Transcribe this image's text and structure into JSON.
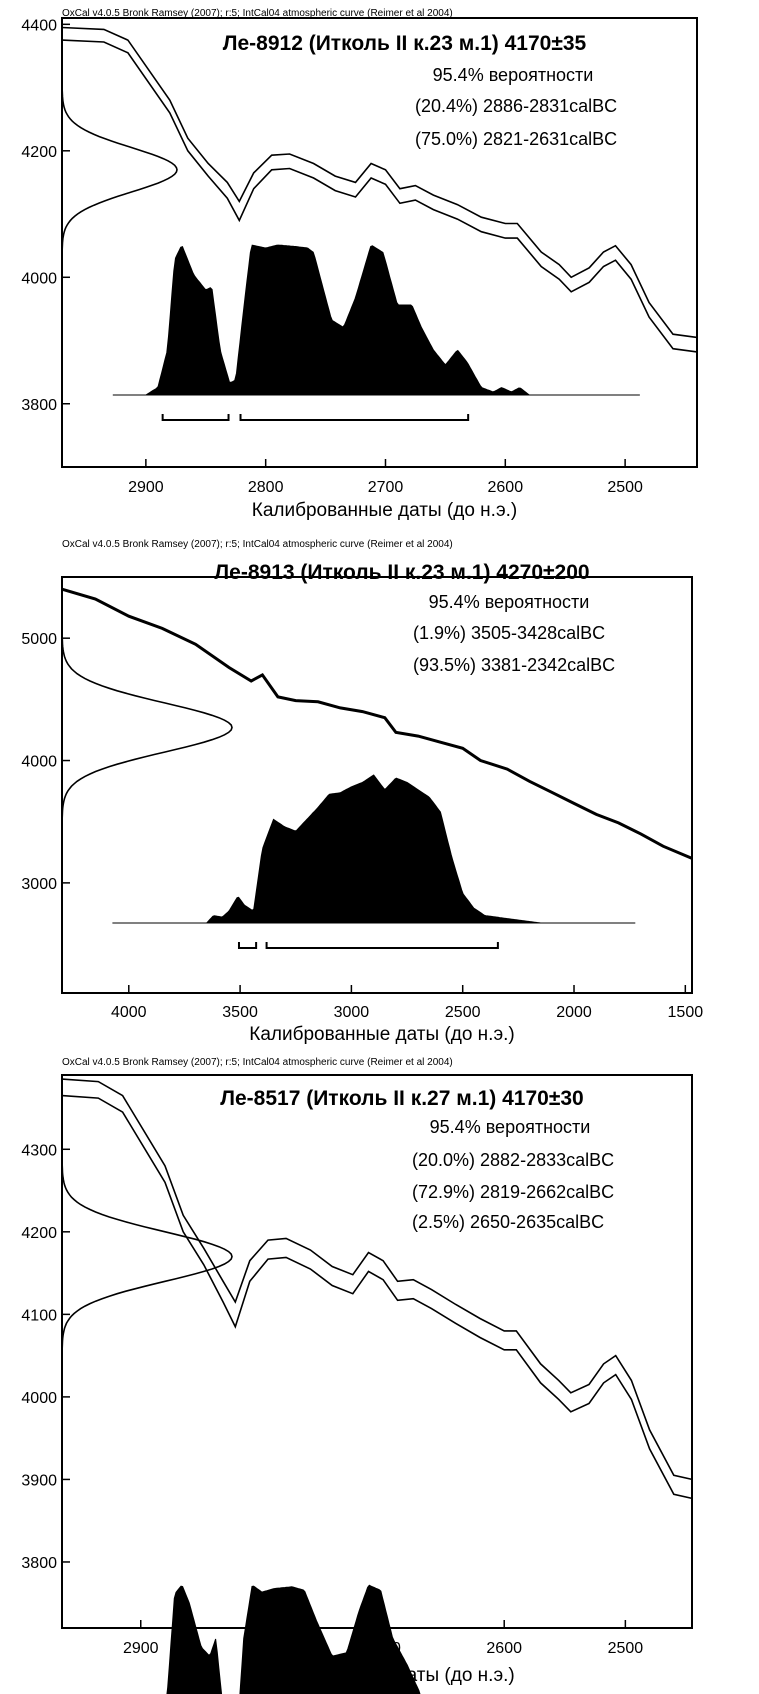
{
  "charts": [
    {
      "header": "OxCal v4.0.5 Bronk Ramsey (2007); r:5; IntCal04 atmospheric curve (Reimer et al 2004)",
      "title": "Ле-8912 (Итколь II к.23 м.1) 4170±35",
      "prob_title": "95.4% вероятности",
      "ranges": [
        "(20.4%) 2886-2831calBC",
        "(75.0%) 2821-2631calBC"
      ],
      "xlabel": "Калиброванные даты (до н.э.)",
      "x_ticks": [
        "2900",
        "2800",
        "2700",
        "2600",
        "2500"
      ],
      "y_ticks": [
        "4400",
        "4200",
        "4000",
        "3800"
      ]
    },
    {
      "header": "OxCal v4.0.5 Bronk Ramsey (2007); r:5; IntCal04 atmospheric curve (Reimer et al 2004)",
      "title": "Ле-8913 (Итколь II к.23 м.1) 4270±200",
      "prob_title": "95.4% вероятности",
      "ranges": [
        "(1.9%) 3505-3428calBC",
        "(93.5%) 3381-2342calBC"
      ],
      "xlabel": "Калиброванные даты (до н.э.)",
      "x_ticks": [
        "4000",
        "3500",
        "3000",
        "2500",
        "2000",
        "1500"
      ],
      "y_ticks": [
        "5000",
        "4000",
        "3000"
      ]
    },
    {
      "header": "OxCal v4.0.5 Bronk Ramsey (2007); r:5; IntCal04 atmospheric curve (Reimer et al 2004)",
      "title": "Ле-8517 (Итколь II к.27 м.1) 4170±30",
      "prob_title": "95.4% вероятности",
      "ranges": [
        "(20.0%) 2882-2833calBC",
        "(72.9%) 2819-2662calBC",
        "(2.5%) 2650-2635calBC"
      ],
      "xlabel": "Калиброванные даты (до н.э.)",
      "x_ticks": [
        "2900",
        "2800",
        "2700",
        "2600",
        "2500"
      ],
      "y_ticks": [
        "4300",
        "4200",
        "4100",
        "4000",
        "3900",
        "3800"
      ]
    }
  ],
  "chart_data": [
    {
      "type": "area",
      "title": "Ле-8912 (Итколь II к.23 м.1) 4170±35",
      "xlabel": "Калиброванные даты (до н.э.)",
      "ylabel": "",
      "x_reversed": true,
      "xlim": [
        2970,
        2440
      ],
      "ylim": [
        3700,
        4410
      ],
      "measurement": {
        "mean": 4170,
        "sigma": 35
      },
      "calibration_curve_upper": [
        [
          2970,
          4395
        ],
        [
          2935,
          4392
        ],
        [
          2915,
          4375
        ],
        [
          2880,
          4280
        ],
        [
          2865,
          4220
        ],
        [
          2848,
          4180
        ],
        [
          2832,
          4150
        ],
        [
          2822,
          4120
        ],
        [
          2810,
          4165
        ],
        [
          2795,
          4193
        ],
        [
          2780,
          4195
        ],
        [
          2760,
          4180
        ],
        [
          2742,
          4160
        ],
        [
          2725,
          4150
        ],
        [
          2712,
          4180
        ],
        [
          2700,
          4170
        ],
        [
          2688,
          4140
        ],
        [
          2675,
          4145
        ],
        [
          2660,
          4130
        ],
        [
          2640,
          4115
        ],
        [
          2620,
          4095
        ],
        [
          2600,
          4085
        ],
        [
          2590,
          4085
        ],
        [
          2570,
          4040
        ],
        [
          2555,
          4020
        ],
        [
          2545,
          4000
        ],
        [
          2530,
          4015
        ],
        [
          2518,
          4040
        ],
        [
          2508,
          4050
        ],
        [
          2495,
          4020
        ],
        [
          2480,
          3960
        ],
        [
          2460,
          3910
        ],
        [
          2440,
          3905
        ]
      ],
      "calibration_curve_lower": [
        [
          2970,
          4375
        ],
        [
          2935,
          4372
        ],
        [
          2915,
          4355
        ],
        [
          2880,
          4260
        ],
        [
          2865,
          4200
        ],
        [
          2848,
          4160
        ],
        [
          2832,
          4125
        ],
        [
          2822,
          4090
        ],
        [
          2810,
          4140
        ],
        [
          2795,
          4170
        ],
        [
          2780,
          4172
        ],
        [
          2760,
          4157
        ],
        [
          2742,
          4137
        ],
        [
          2725,
          4127
        ],
        [
          2712,
          4157
        ],
        [
          2700,
          4147
        ],
        [
          2688,
          4117
        ],
        [
          2675,
          4122
        ],
        [
          2660,
          4107
        ],
        [
          2640,
          4092
        ],
        [
          2620,
          4072
        ],
        [
          2600,
          4062
        ],
        [
          2590,
          4062
        ],
        [
          2570,
          4017
        ],
        [
          2555,
          3997
        ],
        [
          2545,
          3977
        ],
        [
          2530,
          3992
        ],
        [
          2518,
          4017
        ],
        [
          2508,
          4027
        ],
        [
          2495,
          3997
        ],
        [
          2480,
          3937
        ],
        [
          2460,
          3887
        ],
        [
          2440,
          3882
        ]
      ],
      "posterior": [
        [
          2900,
          0
        ],
        [
          2890,
          0.05
        ],
        [
          2882,
          0.3
        ],
        [
          2876,
          0.9
        ],
        [
          2870,
          1.0
        ],
        [
          2860,
          0.8
        ],
        [
          2850,
          0.7
        ],
        [
          2845,
          0.72
        ],
        [
          2838,
          0.3
        ],
        [
          2830,
          0.08
        ],
        [
          2825,
          0.1
        ],
        [
          2818,
          0.6
        ],
        [
          2812,
          1.0
        ],
        [
          2800,
          0.98
        ],
        [
          2790,
          1.0
        ],
        [
          2775,
          0.99
        ],
        [
          2765,
          0.98
        ],
        [
          2760,
          0.95
        ],
        [
          2745,
          0.5
        ],
        [
          2735,
          0.45
        ],
        [
          2725,
          0.65
        ],
        [
          2712,
          1.0
        ],
        [
          2702,
          0.95
        ],
        [
          2690,
          0.6
        ],
        [
          2678,
          0.6
        ],
        [
          2670,
          0.45
        ],
        [
          2660,
          0.3
        ],
        [
          2650,
          0.2
        ],
        [
          2640,
          0.3
        ],
        [
          2632,
          0.22
        ],
        [
          2620,
          0.05
        ],
        [
          2610,
          0.02
        ],
        [
          2603,
          0.05
        ],
        [
          2595,
          0.02
        ],
        [
          2588,
          0.05
        ],
        [
          2580,
          0.0
        ]
      ],
      "hpd_95_ranges": [
        [
          2886,
          2831
        ],
        [
          2821,
          2631
        ]
      ],
      "probability_ranges": [
        "(20.4%) 2886-2831calBC",
        "(75.0%) 2821-2631calBC"
      ]
    },
    {
      "type": "area",
      "title": "Ле-8913 (Итколь II к.23 м.1) 4270±200",
      "xlabel": "Калиброванные даты (до н.э.)",
      "ylabel": "",
      "x_reversed": true,
      "xlim": [
        4300,
        1470
      ],
      "ylim": [
        2100,
        5500
      ],
      "measurement": {
        "mean": 4270,
        "sigma": 200
      },
      "calibration_curve": [
        [
          4300,
          5400
        ],
        [
          4150,
          5320
        ],
        [
          4000,
          5180
        ],
        [
          3850,
          5080
        ],
        [
          3700,
          4950
        ],
        [
          3550,
          4760
        ],
        [
          3450,
          4650
        ],
        [
          3400,
          4700
        ],
        [
          3330,
          4520
        ],
        [
          3250,
          4490
        ],
        [
          3150,
          4480
        ],
        [
          3050,
          4430
        ],
        [
          2950,
          4400
        ],
        [
          2850,
          4350
        ],
        [
          2800,
          4230
        ],
        [
          2700,
          4200
        ],
        [
          2600,
          4150
        ],
        [
          2500,
          4100
        ],
        [
          2420,
          4000
        ],
        [
          2300,
          3930
        ],
        [
          2200,
          3830
        ],
        [
          2100,
          3740
        ],
        [
          2000,
          3650
        ],
        [
          1900,
          3560
        ],
        [
          1800,
          3490
        ],
        [
          1700,
          3400
        ],
        [
          1600,
          3300
        ],
        [
          1470,
          3200
        ]
      ],
      "posterior": [
        [
          3650,
          0
        ],
        [
          3620,
          0.05
        ],
        [
          3580,
          0.04
        ],
        [
          3550,
          0.08
        ],
        [
          3510,
          0.18
        ],
        [
          3480,
          0.12
        ],
        [
          3440,
          0.08
        ],
        [
          3400,
          0.5
        ],
        [
          3350,
          0.7
        ],
        [
          3300,
          0.65
        ],
        [
          3250,
          0.62
        ],
        [
          3200,
          0.7
        ],
        [
          3150,
          0.78
        ],
        [
          3100,
          0.87
        ],
        [
          3050,
          0.88
        ],
        [
          3000,
          0.92
        ],
        [
          2950,
          0.95
        ],
        [
          2900,
          1.0
        ],
        [
          2850,
          0.9
        ],
        [
          2800,
          0.98
        ],
        [
          2750,
          0.95
        ],
        [
          2700,
          0.9
        ],
        [
          2650,
          0.85
        ],
        [
          2600,
          0.75
        ],
        [
          2550,
          0.45
        ],
        [
          2500,
          0.2
        ],
        [
          2450,
          0.1
        ],
        [
          2400,
          0.05
        ],
        [
          2350,
          0.04
        ],
        [
          2300,
          0.03
        ],
        [
          2250,
          0.02
        ],
        [
          2150,
          0.0
        ]
      ],
      "hpd_95_ranges": [
        [
          3505,
          3428
        ],
        [
          3381,
          2342
        ]
      ],
      "probability_ranges": [
        "(1.9%) 3505-3428calBC",
        "(93.5%) 3381-2342calBC"
      ]
    },
    {
      "type": "area",
      "title": "Ле-8517 (Итколь II к.27 м.1) 4170±30",
      "xlabel": "Калиброванные даты (до н.э.)",
      "ylabel": "",
      "x_reversed": true,
      "xlim": [
        2965,
        2445
      ],
      "ylim": [
        3720,
        4390
      ],
      "measurement": {
        "mean": 4170,
        "sigma": 30
      },
      "calibration_curve_upper": [
        [
          2965,
          4385
        ],
        [
          2935,
          4382
        ],
        [
          2915,
          4365
        ],
        [
          2880,
          4280
        ],
        [
          2865,
          4220
        ],
        [
          2848,
          4180
        ],
        [
          2832,
          4140
        ],
        [
          2822,
          4115
        ],
        [
          2810,
          4165
        ],
        [
          2795,
          4190
        ],
        [
          2780,
          4192
        ],
        [
          2760,
          4178
        ],
        [
          2742,
          4158
        ],
        [
          2725,
          4148
        ],
        [
          2712,
          4175
        ],
        [
          2700,
          4165
        ],
        [
          2688,
          4140
        ],
        [
          2675,
          4142
        ],
        [
          2660,
          4130
        ],
        [
          2640,
          4112
        ],
        [
          2620,
          4095
        ],
        [
          2600,
          4080
        ],
        [
          2590,
          4080
        ],
        [
          2570,
          4040
        ],
        [
          2555,
          4020
        ],
        [
          2545,
          4005
        ],
        [
          2530,
          4015
        ],
        [
          2518,
          4040
        ],
        [
          2508,
          4050
        ],
        [
          2495,
          4020
        ],
        [
          2480,
          3960
        ],
        [
          2460,
          3905
        ],
        [
          2445,
          3900
        ]
      ],
      "calibration_curve_lower": [
        [
          2965,
          4365
        ],
        [
          2935,
          4362
        ],
        [
          2915,
          4345
        ],
        [
          2880,
          4260
        ],
        [
          2865,
          4200
        ],
        [
          2848,
          4160
        ],
        [
          2832,
          4115
        ],
        [
          2822,
          4085
        ],
        [
          2810,
          4140
        ],
        [
          2795,
          4167
        ],
        [
          2780,
          4169
        ],
        [
          2760,
          4155
        ],
        [
          2742,
          4135
        ],
        [
          2725,
          4125
        ],
        [
          2712,
          4152
        ],
        [
          2700,
          4142
        ],
        [
          2688,
          4117
        ],
        [
          2675,
          4119
        ],
        [
          2660,
          4107
        ],
        [
          2640,
          4089
        ],
        [
          2620,
          4072
        ],
        [
          2600,
          4057
        ],
        [
          2590,
          4057
        ],
        [
          2570,
          4017
        ],
        [
          2555,
          3997
        ],
        [
          2545,
          3982
        ],
        [
          2530,
          3992
        ],
        [
          2518,
          4017
        ],
        [
          2508,
          4027
        ],
        [
          2495,
          3997
        ],
        [
          2480,
          3937
        ],
        [
          2460,
          3882
        ],
        [
          2445,
          3877
        ]
      ],
      "posterior": [
        [
          2890,
          0
        ],
        [
          2885,
          0.05
        ],
        [
          2878,
          0.4
        ],
        [
          2872,
          0.95
        ],
        [
          2866,
          1.0
        ],
        [
          2860,
          0.9
        ],
        [
          2850,
          0.65
        ],
        [
          2843,
          0.6
        ],
        [
          2838,
          0.7
        ],
        [
          2832,
          0.3
        ],
        [
          2826,
          0.1
        ],
        [
          2820,
          0.2
        ],
        [
          2815,
          0.7
        ],
        [
          2808,
          1.0
        ],
        [
          2800,
          0.96
        ],
        [
          2790,
          0.98
        ],
        [
          2775,
          0.99
        ],
        [
          2765,
          0.97
        ],
        [
          2755,
          0.8
        ],
        [
          2742,
          0.6
        ],
        [
          2730,
          0.62
        ],
        [
          2720,
          0.85
        ],
        [
          2712,
          1.0
        ],
        [
          2702,
          0.97
        ],
        [
          2692,
          0.7
        ],
        [
          2680,
          0.55
        ],
        [
          2670,
          0.4
        ],
        [
          2660,
          0.15
        ],
        [
          2652,
          0.2
        ],
        [
          2645,
          0.32
        ],
        [
          2638,
          0.25
        ],
        [
          2630,
          0.07
        ],
        [
          2620,
          0.02
        ],
        [
          2610,
          0.02
        ],
        [
          2600,
          0.03
        ],
        [
          2590,
          0.0
        ]
      ],
      "hpd_95_ranges": [
        [
          2882,
          2833
        ],
        [
          2819,
          2662
        ],
        [
          2650,
          2635
        ]
      ],
      "probability_ranges": [
        "(20.0%) 2882-2833calBC",
        "(72.9%) 2819-2662calBC",
        "(2.5%) 2650-2635calBC"
      ]
    }
  ]
}
